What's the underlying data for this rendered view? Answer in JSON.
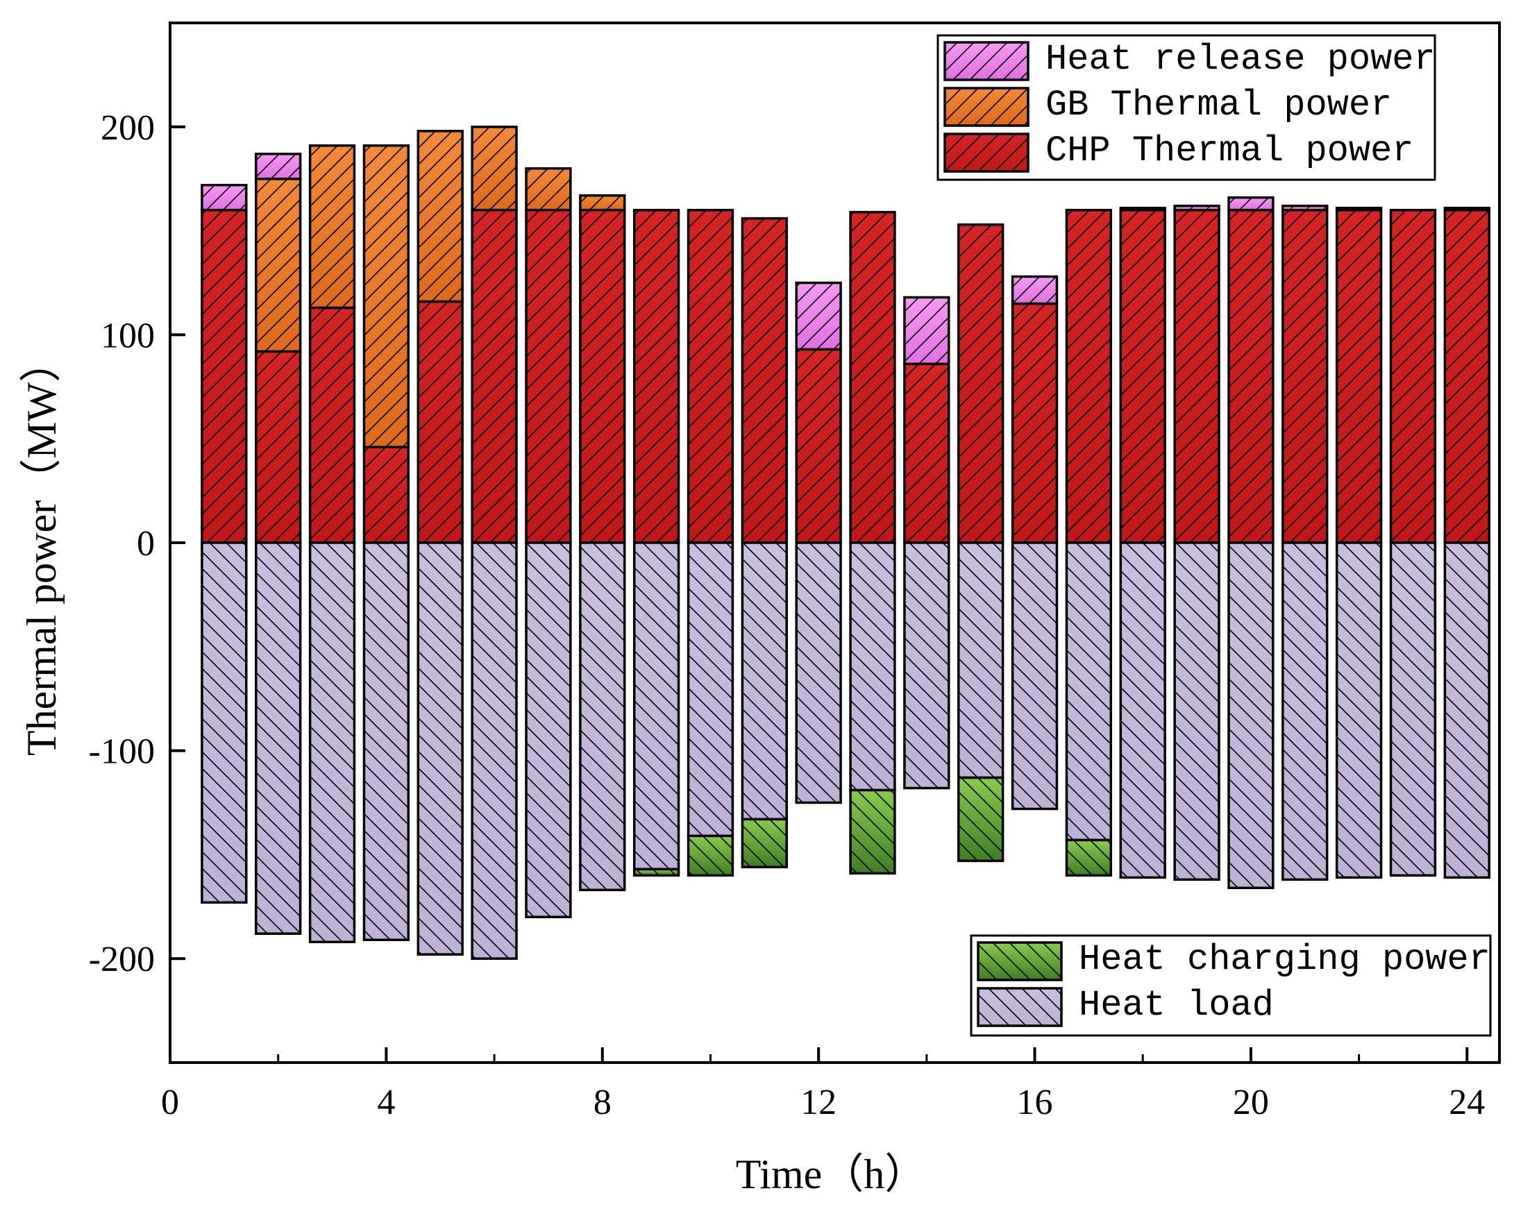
{
  "chart_data": {
    "type": "bar",
    "subtype": "stacked-bar-with-negative",
    "xlabel": "Time（h）",
    "ylabel": "Thermal power（MW）",
    "xlim": [
      0,
      24.6
    ],
    "ylim": [
      -250,
      250
    ],
    "x_ticks": [
      0,
      4,
      8,
      12,
      16,
      20,
      24
    ],
    "x_tick_labels": [
      "0",
      "4",
      "8",
      "12",
      "16",
      "20",
      "24"
    ],
    "y_ticks": [
      -200,
      -100,
      0,
      100,
      200
    ],
    "y_tick_labels": [
      "-200",
      "-100",
      "0",
      "100",
      "200"
    ],
    "x": [
      1,
      2,
      3,
      4,
      5,
      6,
      7,
      8,
      9,
      10,
      11,
      12,
      13,
      14,
      15,
      16,
      17,
      18,
      19,
      20,
      21,
      22,
      23,
      24
    ],
    "bar_width": 0.82,
    "positive_stack": [
      "chp",
      "gb",
      "release"
    ],
    "negative_stack": [
      "load",
      "charging"
    ],
    "series": [
      {
        "key": "release",
        "name": "Heat release power",
        "color": "#EE82EE",
        "values": [
          12,
          12,
          0,
          0,
          0,
          0,
          0,
          0,
          0,
          0,
          0,
          32,
          0,
          32,
          0,
          13,
          0,
          1,
          2,
          6,
          2,
          1,
          0,
          1
        ]
      },
      {
        "key": "gb",
        "name": "GB Thermal power",
        "color": "#EE7F2D",
        "values": [
          0,
          83,
          78,
          145,
          82,
          40,
          20,
          7,
          0,
          0,
          0,
          0,
          0,
          0,
          0,
          0,
          0,
          0,
          0,
          0,
          0,
          0,
          0,
          0
        ]
      },
      {
        "key": "chp",
        "name": "CHP Thermal power",
        "color": "#CC1F1F",
        "values": [
          160,
          92,
          113,
          46,
          116,
          160,
          160,
          160,
          160,
          160,
          156,
          93,
          159,
          86,
          153,
          115,
          160,
          160,
          160,
          160,
          160,
          160,
          160,
          160
        ]
      },
      {
        "key": "charging",
        "name": "Heat charging power",
        "color": "#6DB43A",
        "values": [
          0,
          0,
          0,
          0,
          0,
          0,
          0,
          0,
          -3,
          -19,
          -23,
          0,
          -40,
          0,
          -40,
          0,
          -17,
          0,
          0,
          0,
          0,
          0,
          0,
          0
        ]
      },
      {
        "key": "load",
        "name": "Heat load",
        "color": "#C5B9DB",
        "values": [
          -173,
          -188,
          -192,
          -191,
          -198,
          -200,
          -180,
          -167,
          -157,
          -141,
          -133,
          -125,
          -119,
          -118,
          -113,
          -128,
          -143,
          -161,
          -162,
          -166,
          -162,
          -161,
          -160,
          -161
        ]
      }
    ],
    "legends": [
      {
        "position": "top-right",
        "items": [
          "Heat release power",
          "GB Thermal power",
          "CHP Thermal power"
        ]
      },
      {
        "position": "bottom-right",
        "items": [
          "Heat charging power",
          "Heat load"
        ]
      }
    ],
    "grid": false
  }
}
